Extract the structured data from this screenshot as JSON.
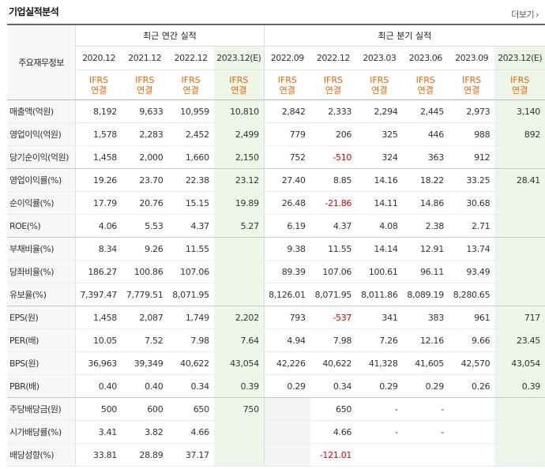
{
  "header": {
    "title": "기업실적분석",
    "more_label": "더보기",
    "more_chevron": "›"
  },
  "table": {
    "corner_label": "주요재무정보",
    "annual_label": "최근 연간 실적",
    "quarter_label": "최근 분기 실적",
    "periods": [
      "2020.12",
      "2021.12",
      "2022.12",
      "2023.12(E)",
      "2022.09",
      "2022.12",
      "2023.03",
      "2023.06",
      "2023.09",
      "2023.12(E)"
    ],
    "ifrs_line1": "IFRS",
    "ifrs_line2": "연결",
    "rows": [
      {
        "label": "매출액(억원)",
        "values": [
          "8,192",
          "9,633",
          "10,959",
          "10,810",
          "2,842",
          "2,333",
          "2,294",
          "2,445",
          "2,973",
          "3,140"
        ]
      },
      {
        "label": "영업이익(억원)",
        "values": [
          "1,578",
          "2,283",
          "2,452",
          "2,499",
          "779",
          "206",
          "325",
          "446",
          "988",
          "892"
        ]
      },
      {
        "label": "당기순이익(억원)",
        "values": [
          "1,458",
          "2,000",
          "1,660",
          "2,150",
          "752",
          "-510",
          "324",
          "363",
          "912",
          ""
        ]
      },
      {
        "label": "영업이익률(%)",
        "values": [
          "19.26",
          "23.70",
          "22.38",
          "23.12",
          "27.40",
          "8.85",
          "14.16",
          "18.22",
          "33.25",
          "28.41"
        ]
      },
      {
        "label": "순이익률(%)",
        "values": [
          "17.79",
          "20.76",
          "15.15",
          "19.89",
          "26.48",
          "-21.86",
          "14.11",
          "14.86",
          "30.68",
          ""
        ]
      },
      {
        "label": "ROE(%)",
        "values": [
          "4.06",
          "5.53",
          "4.37",
          "5.27",
          "6.19",
          "4.37",
          "4.08",
          "2.38",
          "2.71",
          ""
        ]
      },
      {
        "label": "부채비율(%)",
        "values": [
          "8.34",
          "9.26",
          "11.55",
          "",
          "9.38",
          "11.55",
          "14.14",
          "12.91",
          "13.74",
          ""
        ]
      },
      {
        "label": "당좌비율(%)",
        "values": [
          "186.27",
          "100.86",
          "107.06",
          "",
          "89.39",
          "107.06",
          "100.61",
          "96.11",
          "93.49",
          ""
        ]
      },
      {
        "label": "유보율(%)",
        "values": [
          "7,397.47",
          "7,779.51",
          "8,071.95",
          "",
          "8,126.01",
          "8,071.95",
          "8,011.86",
          "8,089.19",
          "8,280.65",
          ""
        ]
      },
      {
        "label": "EPS(원)",
        "values": [
          "1,458",
          "2,087",
          "1,749",
          "2,202",
          "793",
          "-537",
          "341",
          "383",
          "961",
          "717"
        ]
      },
      {
        "label": "PER(배)",
        "values": [
          "10.05",
          "7.52",
          "7.98",
          "7.64",
          "4.94",
          "7.98",
          "7.26",
          "12.16",
          "9.66",
          "23.45"
        ]
      },
      {
        "label": "BPS(원)",
        "values": [
          "36,963",
          "39,349",
          "40,622",
          "43,054",
          "42,226",
          "40,622",
          "41,328",
          "41,605",
          "42,570",
          "43,054"
        ]
      },
      {
        "label": "PBR(배)",
        "values": [
          "0.40",
          "0.40",
          "0.34",
          "0.39",
          "0.29",
          "0.34",
          "0.29",
          "0.29",
          "0.26",
          "0.39"
        ]
      },
      {
        "label": "주당배당금(원)",
        "values": [
          "500",
          "600",
          "650",
          "750",
          "",
          "650",
          "-",
          "-",
          "",
          ""
        ]
      },
      {
        "label": "시가배당률(%)",
        "values": [
          "3.41",
          "3.82",
          "4.66",
          "",
          "",
          "4.66",
          "-",
          "-",
          "",
          ""
        ]
      },
      {
        "label": "배당성향(%)",
        "values": [
          "33.81",
          "28.89",
          "37.17",
          "",
          "",
          "-121.01",
          "",
          "",
          "",
          ""
        ]
      }
    ]
  },
  "colors": {
    "ifrs": "#ee6400",
    "negative": "#e00000",
    "estimate_bg": "#eef6e9",
    "label_bg": "#f7f7f7"
  }
}
